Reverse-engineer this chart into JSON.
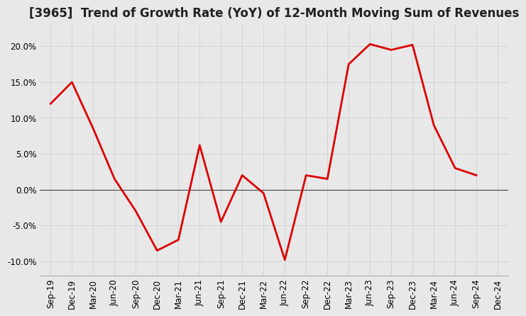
{
  "title": "[3965]  Trend of Growth Rate (YoY) of 12-Month Moving Sum of Revenues",
  "x_labels": [
    "Sep-19",
    "Dec-19",
    "Mar-20",
    "Jun-20",
    "Sep-20",
    "Dec-20",
    "Mar-21",
    "Jun-21",
    "Sep-21",
    "Dec-21",
    "Mar-22",
    "Jun-22",
    "Sep-22",
    "Dec-22",
    "Mar-23",
    "Jun-23",
    "Sep-23",
    "Dec-23",
    "Mar-24",
    "Jun-24",
    "Sep-24",
    "Dec-24"
  ],
  "y_values": [
    12.0,
    15.0,
    8.5,
    1.5,
    -3.0,
    -8.5,
    -7.0,
    6.2,
    -4.5,
    2.0,
    -0.5,
    -9.8,
    2.0,
    1.5,
    17.5,
    20.3,
    19.5,
    20.2,
    9.0,
    3.0,
    2.0,
    null
  ],
  "line_color": "#dd0000",
  "background_color": "#e8e8e8",
  "plot_bg_color": "#e8e8e8",
  "grid_color": "#aaaaaa",
  "zero_line_color": "#444444",
  "ylim": [
    -12,
    23
  ],
  "yticks": [
    -10.0,
    -5.0,
    0.0,
    5.0,
    10.0,
    15.0,
    20.0
  ],
  "title_fontsize": 12,
  "tick_fontsize": 8.5
}
